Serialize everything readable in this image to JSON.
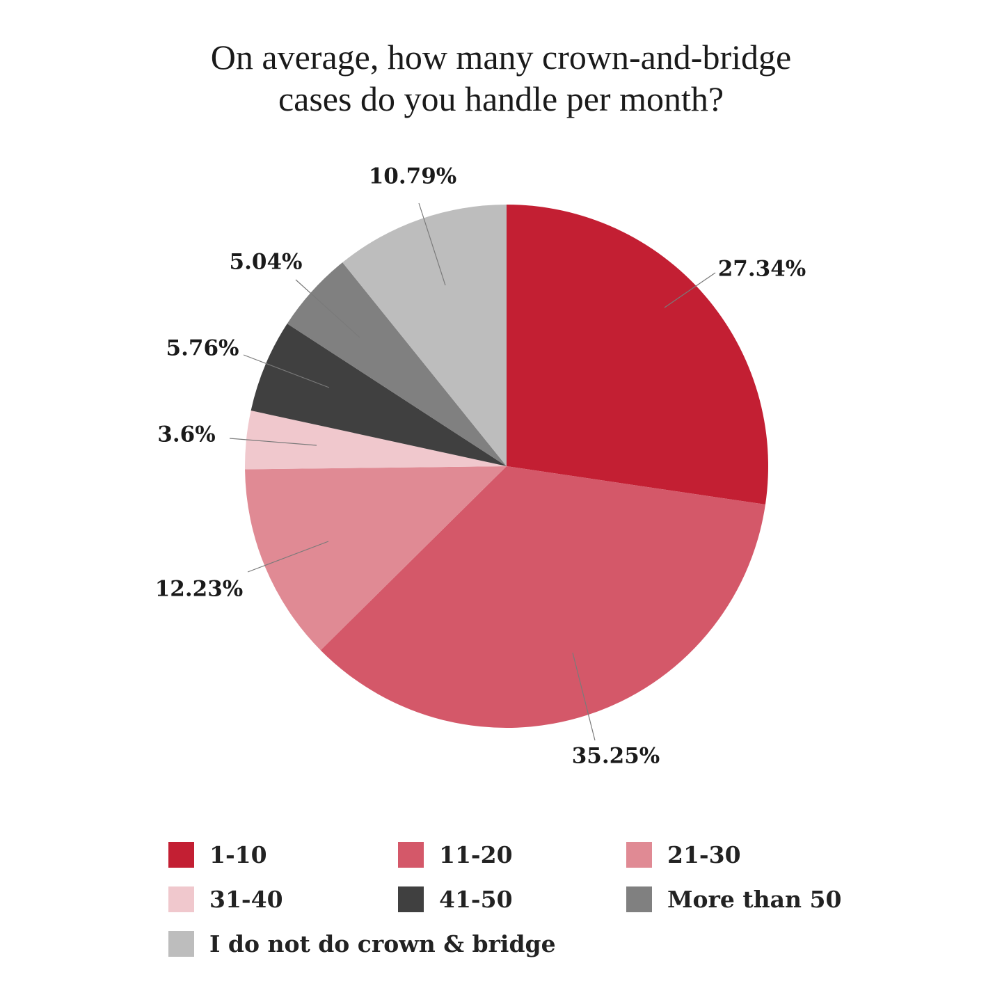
{
  "chart_data": {
    "type": "pie",
    "title_lines": [
      "On average, how many crown-and-bridge",
      "cases do you handle per month?"
    ],
    "start_angle_deg": 0,
    "direction": "clockwise",
    "slices": [
      {
        "label": "1-10",
        "value": 27.34,
        "value_label": "27.34%",
        "color": "#c31f33"
      },
      {
        "label": "11-20",
        "value": 35.25,
        "value_label": "35.25%",
        "color": "#d45869"
      },
      {
        "label": "21-30",
        "value": 12.23,
        "value_label": "12.23%",
        "color": "#e08a94"
      },
      {
        "label": "31-40",
        "value": 3.6,
        "value_label": "3.6%",
        "color": "#f0c8cd"
      },
      {
        "label": "41-50",
        "value": 5.76,
        "value_label": "5.76%",
        "color": "#404040"
      },
      {
        "label": "More than 50",
        "value": 5.04,
        "value_label": "5.04%",
        "color": "#808080"
      },
      {
        "label": "I do not do crown & bridge",
        "value": 10.79,
        "value_label": "10.79%",
        "color": "#bdbdbd"
      }
    ],
    "legend": {
      "position": "bottom",
      "columns": 3
    }
  }
}
